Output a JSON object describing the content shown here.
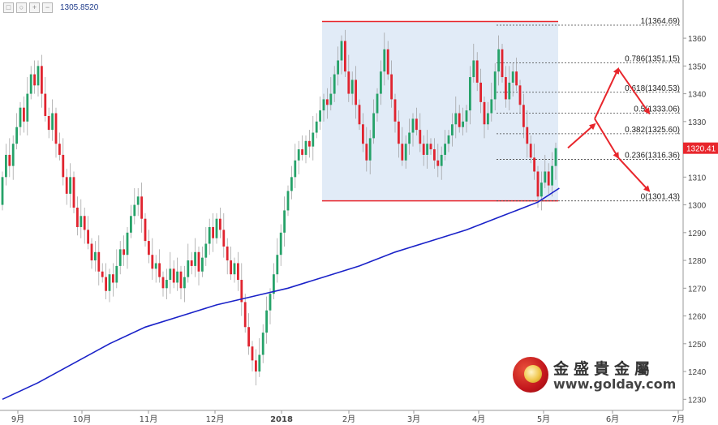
{
  "toolbar": {
    "buttons": [
      "□",
      "○",
      "+",
      "−"
    ],
    "price": "1305.8520"
  },
  "colors": {
    "up": "#26a269",
    "down": "#e0242f",
    "ma": "#1a22c8",
    "channel_fill": "#dce8f6",
    "channel_line": "#e8262c",
    "arrow": "#e8262c",
    "price_tag": "#e8262c"
  },
  "chart_data": {
    "type": "candlestick",
    "title": "",
    "xlabel": "",
    "ylabel": "",
    "ylim": [
      1226,
      1372
    ],
    "y_ticks": [
      1230,
      1240,
      1250,
      1260,
      1270,
      1280,
      1290,
      1300,
      1310,
      1320,
      1330,
      1340,
      1350,
      1360
    ],
    "x_ticks": [
      "9月",
      "10月",
      "11月",
      "12月",
      "2018",
      "2月",
      "3月",
      "4月",
      "5月",
      "6月",
      "7月"
    ],
    "last_price": "1320.41",
    "fib_levels": [
      {
        "label": "1(1364.69)",
        "ratio": 1,
        "price": 1364.69
      },
      {
        "label": "0.786(1351.15)",
        "ratio": 0.786,
        "price": 1351.15
      },
      {
        "label": "0.618(1340.53)",
        "ratio": 0.618,
        "price": 1340.53
      },
      {
        "label": "0.5(1333.06)",
        "ratio": 0.5,
        "price": 1333.06
      },
      {
        "label": "0.382(1325.60)",
        "ratio": 0.382,
        "price": 1325.6
      },
      {
        "label": "0.236(1316.36)",
        "ratio": 0.236,
        "price": 1316.36
      },
      {
        "label": "0(1301.43)",
        "ratio": 0,
        "price": 1301.43
      }
    ],
    "channel": {
      "start": "2018-01-25",
      "end": "2018-05-22",
      "top": 1366,
      "bottom": 1301.43
    },
    "projection": [
      {
        "from": [
          0,
          1320.5
        ],
        "to": [
          1,
          1329
        ]
      },
      {
        "from": [
          1,
          1331
        ],
        "to": [
          2,
          1349
        ]
      },
      {
        "from": [
          2,
          1349
        ],
        "to": [
          3,
          1333
        ]
      },
      {
        "from": [
          1,
          1331
        ],
        "to": [
          2,
          1317
        ]
      },
      {
        "from": [
          2,
          1317
        ],
        "to": [
          3,
          1305
        ]
      }
    ],
    "candles": [
      [
        1300,
        1310
      ],
      [
        1310,
        1318
      ],
      [
        1318,
        1314
      ],
      [
        1314,
        1322
      ],
      [
        1322,
        1328
      ],
      [
        1328,
        1335
      ],
      [
        1335,
        1330
      ],
      [
        1330,
        1340
      ],
      [
        1340,
        1347
      ],
      [
        1347,
        1343
      ],
      [
        1343,
        1350
      ],
      [
        1350,
        1340
      ],
      [
        1340,
        1332
      ],
      [
        1332,
        1327
      ],
      [
        1327,
        1333
      ],
      [
        1333,
        1322
      ],
      [
        1322,
        1318
      ],
      [
        1318,
        1310
      ],
      [
        1310,
        1304
      ],
      [
        1304,
        1310
      ],
      [
        1310,
        1299
      ],
      [
        1299,
        1292
      ],
      [
        1292,
        1296
      ],
      [
        1296,
        1291
      ],
      [
        1291,
        1286
      ],
      [
        1286,
        1280
      ],
      [
        1280,
        1283
      ],
      [
        1283,
        1276
      ],
      [
        1276,
        1274
      ],
      [
        1274,
        1269
      ],
      [
        1269,
        1275
      ],
      [
        1275,
        1272
      ],
      [
        1272,
        1278
      ],
      [
        1278,
        1284
      ],
      [
        1284,
        1282
      ],
      [
        1282,
        1290
      ],
      [
        1290,
        1296
      ],
      [
        1296,
        1300
      ],
      [
        1300,
        1303
      ],
      [
        1303,
        1295
      ],
      [
        1295,
        1287
      ],
      [
        1287,
        1282
      ],
      [
        1282,
        1277
      ],
      [
        1277,
        1279
      ],
      [
        1279,
        1274
      ],
      [
        1274,
        1270
      ],
      [
        1270,
        1273
      ],
      [
        1273,
        1277
      ],
      [
        1277,
        1272
      ],
      [
        1272,
        1276
      ],
      [
        1276,
        1270
      ],
      [
        1270,
        1274
      ],
      [
        1274,
        1280
      ],
      [
        1280,
        1278
      ],
      [
        1278,
        1283
      ],
      [
        1283,
        1276
      ],
      [
        1276,
        1281
      ],
      [
        1281,
        1286
      ],
      [
        1286,
        1292
      ],
      [
        1292,
        1288
      ],
      [
        1288,
        1295
      ],
      [
        1295,
        1291
      ],
      [
        1291,
        1285
      ],
      [
        1285,
        1280
      ],
      [
        1280,
        1275
      ],
      [
        1275,
        1279
      ],
      [
        1279,
        1273
      ],
      [
        1273,
        1265
      ],
      [
        1265,
        1256
      ],
      [
        1256,
        1249
      ],
      [
        1249,
        1244
      ],
      [
        1244,
        1240
      ],
      [
        1240,
        1246
      ],
      [
        1246,
        1254
      ],
      [
        1254,
        1262
      ],
      [
        1262,
        1268
      ],
      [
        1268,
        1275
      ],
      [
        1275,
        1282
      ],
      [
        1282,
        1290
      ],
      [
        1290,
        1298
      ],
      [
        1298,
        1305
      ],
      [
        1305,
        1310
      ],
      [
        1310,
        1316
      ],
      [
        1316,
        1320
      ],
      [
        1320,
        1318
      ],
      [
        1318,
        1323
      ],
      [
        1323,
        1321
      ],
      [
        1321,
        1326
      ],
      [
        1326,
        1330
      ],
      [
        1330,
        1334
      ],
      [
        1334,
        1338
      ],
      [
        1338,
        1336
      ],
      [
        1336,
        1340
      ],
      [
        1340,
        1347
      ],
      [
        1347,
        1352
      ],
      [
        1352,
        1359
      ],
      [
        1359,
        1348
      ],
      [
        1348,
        1340
      ],
      [
        1340,
        1345
      ],
      [
        1345,
        1336
      ],
      [
        1336,
        1329
      ],
      [
        1329,
        1322
      ],
      [
        1322,
        1316
      ],
      [
        1316,
        1324
      ],
      [
        1324,
        1333
      ],
      [
        1333,
        1340
      ],
      [
        1340,
        1348
      ],
      [
        1348,
        1356
      ],
      [
        1356,
        1347
      ],
      [
        1347,
        1338
      ],
      [
        1338,
        1330
      ],
      [
        1330,
        1322
      ],
      [
        1322,
        1316
      ],
      [
        1316,
        1322
      ],
      [
        1322,
        1326
      ],
      [
        1326,
        1331
      ],
      [
        1331,
        1327
      ],
      [
        1327,
        1322
      ],
      [
        1322,
        1318
      ],
      [
        1318,
        1322
      ],
      [
        1322,
        1320
      ],
      [
        1320,
        1316
      ],
      [
        1316,
        1314
      ],
      [
        1314,
        1318
      ],
      [
        1318,
        1322
      ],
      [
        1322,
        1325
      ],
      [
        1325,
        1329
      ],
      [
        1329,
        1333
      ],
      [
        1333,
        1328
      ],
      [
        1328,
        1330
      ],
      [
        1330,
        1334
      ],
      [
        1334,
        1346
      ],
      [
        1346,
        1352
      ],
      [
        1352,
        1344
      ],
      [
        1344,
        1337
      ],
      [
        1337,
        1329
      ],
      [
        1329,
        1333
      ],
      [
        1333,
        1338
      ],
      [
        1338,
        1348
      ],
      [
        1348,
        1356
      ],
      [
        1356,
        1346
      ],
      [
        1346,
        1338
      ],
      [
        1338,
        1344
      ],
      [
        1344,
        1348
      ],
      [
        1348,
        1343
      ],
      [
        1343,
        1336
      ],
      [
        1336,
        1328
      ],
      [
        1328,
        1322
      ],
      [
        1322,
        1317
      ],
      [
        1317,
        1312
      ],
      [
        1312,
        1303
      ],
      [
        1303,
        1308
      ],
      [
        1308,
        1312
      ],
      [
        1312,
        1307
      ],
      [
        1307,
        1314
      ],
      [
        1314,
        1320.41
      ]
    ],
    "ma_points": [
      [
        0,
        1230
      ],
      [
        10,
        1236
      ],
      [
        20,
        1243
      ],
      [
        30,
        1250
      ],
      [
        40,
        1256
      ],
      [
        50,
        1260
      ],
      [
        60,
        1264
      ],
      [
        70,
        1267
      ],
      [
        80,
        1270
      ],
      [
        90,
        1274
      ],
      [
        100,
        1278
      ],
      [
        110,
        1283
      ],
      [
        120,
        1287
      ],
      [
        130,
        1291
      ],
      [
        140,
        1296
      ],
      [
        150,
        1301
      ],
      [
        156,
        1306
      ]
    ]
  }
}
